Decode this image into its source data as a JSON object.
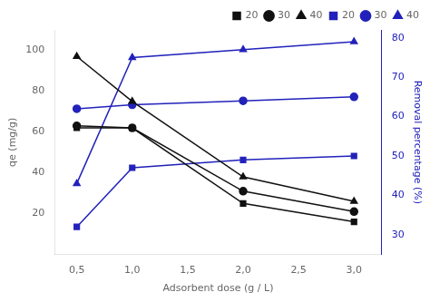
{
  "chart_data": {
    "type": "line",
    "x": [
      0.5,
      1.0,
      2.0,
      3.0
    ],
    "xlabel": "Adsorbent dose (g / L)",
    "ylabel": "qe (mg/g)",
    "y2label": "Removal percentage (%)",
    "series": [
      {
        "name": "20",
        "color": "#111111",
        "marker": "square",
        "values": [
          62,
          62,
          25,
          16
        ]
      },
      {
        "name": "30",
        "color": "#111111",
        "marker": "circle",
        "values": [
          63,
          62,
          31,
          21
        ]
      },
      {
        "name": "40",
        "color": "#111111",
        "marker": "triangle",
        "values": [
          97,
          75,
          38,
          26
        ]
      },
      {
        "name": "20",
        "color": "#2222bb",
        "marker": "square",
        "axis": "y2",
        "values": [
          32,
          47,
          49,
          50
        ]
      },
      {
        "name": "30",
        "color": "#2222bb",
        "marker": "circle",
        "axis": "y2",
        "values": [
          62,
          63,
          64,
          65
        ]
      },
      {
        "name": "40",
        "color": "#2222bb",
        "marker": "triangle",
        "axis": "y2",
        "values": [
          43,
          75,
          77,
          79
        ]
      }
    ],
    "xlim": [
      0.3,
      3.25
    ],
    "xticks": [
      {
        "value": 0.5,
        "label": "0,5"
      },
      {
        "value": 1.0,
        "label": "1,0"
      },
      {
        "value": 1.5,
        "label": "1,5"
      },
      {
        "value": 2.0,
        "label": "2,0"
      },
      {
        "value": 2.5,
        "label": "2,5"
      },
      {
        "value": 3.0,
        "label": "3,0"
      }
    ],
    "ylim": [
      0,
      110
    ],
    "yticks": [
      20,
      40,
      60,
      80,
      100
    ],
    "y2lim": [
      25,
      82
    ],
    "y2ticks": [
      30,
      40,
      50,
      60,
      70,
      80
    ],
    "legend": "upper right",
    "grid": false
  }
}
